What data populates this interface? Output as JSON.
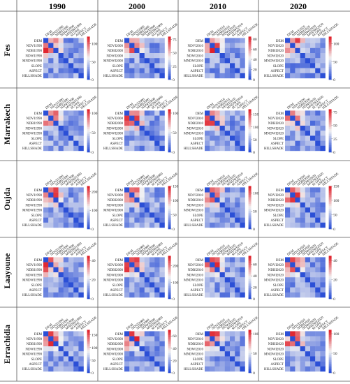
{
  "columns": [
    "1990",
    "2000",
    "2010",
    "2020"
  ],
  "rows": [
    "Fes",
    "Marrakech",
    "Oujda",
    "Laayoune",
    "Errachidia"
  ],
  "colors": {
    "low": "#2b4fd6",
    "mid": "#f2f2f2",
    "high": "#e0202a",
    "grid": "#555555"
  },
  "chart_data": {
    "type": "heatmap",
    "grid": {
      "rows": 5,
      "cols": 4
    },
    "panels": [
      {
        "row": "Fes",
        "col": "1990",
        "labels": [
          "DEM",
          "NDVI1990",
          "NDBI1990",
          "NDWI1990",
          "MNDWI1990",
          "SLOPE",
          "ASPECT",
          "HILLSHADE"
        ],
        "colorbar": {
          "min": 0,
          "max": 120,
          "ticks": [
            0,
            50,
            100
          ]
        }
      },
      {
        "row": "Fes",
        "col": "2000",
        "labels": [
          "DEM",
          "NDVI2000",
          "NDBI2000",
          "NDWI2000",
          "MNDWI2000",
          "SLOPE",
          "ASPECT",
          "HILLSHADE"
        ],
        "colorbar": {
          "min": 0,
          "max": 80,
          "ticks": [
            0,
            25,
            50,
            75
          ]
        }
      },
      {
        "row": "Fes",
        "col": "2010",
        "labels": [
          "DEM",
          "NDVI2010",
          "NDBI2010",
          "NDWI2010",
          "MNDWI2010",
          "SLOPE",
          "ASPECT",
          "HILLSHADE"
        ],
        "colorbar": {
          "min": 0,
          "max": 85,
          "ticks": [
            0,
            20,
            40,
            60,
            80
          ]
        }
      },
      {
        "row": "Fes",
        "col": "2020",
        "labels": [
          "DEM",
          "NDVI2020",
          "NDBI2020",
          "NDWI2020",
          "MNDWI2020",
          "SLOPE",
          "ASPECT",
          "HILLSHADE"
        ],
        "colorbar": {
          "min": 0,
          "max": 120,
          "ticks": [
            0,
            50,
            100
          ]
        }
      },
      {
        "row": "Marrakech",
        "col": "1990",
        "labels": [
          "DEM",
          "NDVI1990",
          "NDBI1990",
          "NDWI1990",
          "MNDWI1990",
          "SLOPE",
          "ASPECT",
          "HILLSHADE"
        ],
        "colorbar": {
          "min": 0,
          "max": 110,
          "ticks": [
            0,
            50,
            100
          ]
        }
      },
      {
        "row": "Marrakech",
        "col": "2000",
        "labels": [
          "DEM",
          "NDVI2000",
          "NDBI2000",
          "NDWI2000",
          "MNDWI2000",
          "SLOPE",
          "ASPECT",
          "HILLSHADE"
        ],
        "colorbar": {
          "min": 0,
          "max": 110,
          "ticks": [
            0,
            50,
            100
          ]
        }
      },
      {
        "row": "Marrakech",
        "col": "2010",
        "labels": [
          "DEM",
          "NDVI2010",
          "NDBI2010",
          "NDWI2010",
          "MNDWI2010",
          "SLOPE",
          "ASPECT",
          "HILLSHADE"
        ],
        "colorbar": {
          "min": 0,
          "max": 170,
          "ticks": [
            0,
            50,
            100,
            150
          ]
        }
      },
      {
        "row": "Marrakech",
        "col": "2020",
        "labels": [
          "DEM",
          "NDVI2020",
          "NDBI2020",
          "NDWI2020",
          "MNDWI2020",
          "SLOPE",
          "ASPECT",
          "HILLSHADE"
        ],
        "colorbar": {
          "min": 0,
          "max": 80,
          "ticks": [
            0,
            25,
            50,
            75
          ]
        }
      },
      {
        "row": "Oujda",
        "col": "1990",
        "labels": [
          "DEM",
          "NDVI1990",
          "NDBI1990",
          "NDWI1990",
          "MNDWI1990",
          "SLOPE",
          "ASPECT",
          "HILLSHADE"
        ],
        "colorbar": {
          "min": 0,
          "max": 230,
          "ticks": [
            0,
            100,
            200
          ]
        }
      },
      {
        "row": "Oujda",
        "col": "2000",
        "labels": [
          "DEM",
          "NDVI2000",
          "NDBI2000",
          "NDWI2000",
          "MNDWI2000",
          "SLOPE",
          "ASPECT",
          "HILLSHADE"
        ],
        "colorbar": {
          "min": 0,
          "max": 150,
          "ticks": [
            0,
            50,
            100,
            150
          ]
        }
      },
      {
        "row": "Oujda",
        "col": "2010",
        "labels": [
          "DEM",
          "NDVI2010",
          "NDBI2010",
          "NDWI2010",
          "MNDWI2010",
          "SLOPE",
          "ASPECT",
          "HILLSHADE"
        ],
        "colorbar": {
          "min": 0,
          "max": 120,
          "ticks": [
            0,
            50,
            100
          ]
        }
      },
      {
        "row": "Oujda",
        "col": "2020",
        "labels": [
          "DEM",
          "NDVI2020",
          "NDBI2020",
          "NDWI2020",
          "MNDWI2020",
          "SLOPE",
          "ASPECT",
          "HILLSHADE"
        ],
        "colorbar": {
          "min": 0,
          "max": 150,
          "ticks": [
            0,
            50,
            100,
            150
          ]
        }
      },
      {
        "row": "Laayoune",
        "col": "1990",
        "labels": [
          "DEM",
          "NDVI1990",
          "NDBI1990",
          "NDWI1990",
          "MNDWI1990",
          "SLOPE",
          "ASPECT",
          "HILLSHADE"
        ],
        "colorbar": {
          "min": 0,
          "max": 45,
          "ticks": [
            0,
            20,
            40
          ]
        }
      },
      {
        "row": "Laayoune",
        "col": "2000",
        "labels": [
          "DEM",
          "NDVI2000",
          "NDBI2000",
          "NDWI2000",
          "MNDWI2000",
          "SLOPE",
          "ASPECT",
          "HILLSHADE"
        ],
        "colorbar": {
          "min": 0,
          "max": 260,
          "ticks": [
            0,
            100,
            200
          ]
        }
      },
      {
        "row": "Laayoune",
        "col": "2010",
        "labels": [
          "DEM",
          "NDVI2010",
          "NDBI2010",
          "NDWI2010",
          "MNDWI2010",
          "SLOPE",
          "ASPECT",
          "HILLSHADE"
        ],
        "colorbar": {
          "min": 0,
          "max": 75,
          "ticks": [
            0,
            20,
            40,
            60
          ]
        }
      },
      {
        "row": "Laayoune",
        "col": "2020",
        "labels": [
          "DEM",
          "NDVI2020",
          "NDBI2020",
          "NDWI2020",
          "MNDWI2020",
          "SLOPE",
          "ASPECT",
          "HILLSHADE"
        ],
        "colorbar": {
          "min": 0,
          "max": 45,
          "ticks": [
            0,
            20,
            40
          ]
        }
      },
      {
        "row": "Errachidia",
        "col": "1990",
        "labels": [
          "DEM",
          "NDVI1990",
          "NDBI1990",
          "NDWI1990",
          "MNDWI1990",
          "SLOPE",
          "ASPECT",
          "HILLSHADE"
        ],
        "colorbar": {
          "min": 0,
          "max": 170,
          "ticks": [
            0,
            50,
            100,
            150
          ]
        }
      },
      {
        "row": "Errachidia",
        "col": "2000",
        "labels": [
          "DEM",
          "NDVI2000",
          "NDBI2000",
          "NDWI2000",
          "MNDWI2000",
          "SLOPE",
          "ASPECT",
          "HILLSHADE"
        ],
        "colorbar": {
          "min": 0,
          "max": 70,
          "ticks": [
            0,
            20,
            40,
            60
          ]
        }
      },
      {
        "row": "Errachidia",
        "col": "2010",
        "labels": [
          "DEM",
          "NDVI2010",
          "NDBI2010",
          "NDWI2010",
          "MNDWI2010",
          "SLOPE",
          "ASPECT",
          "HILLSHADE"
        ],
        "colorbar": {
          "min": 0,
          "max": 110,
          "ticks": [
            0,
            50,
            100
          ]
        }
      },
      {
        "row": "Errachidia",
        "col": "2020",
        "labels": [
          "DEM",
          "NDVI2020",
          "NDBI2020",
          "NDWI2020",
          "MNDWI2020",
          "SLOPE",
          "ASPECT",
          "HILLSHADE"
        ],
        "colorbar": {
          "min": 0,
          "max": 110,
          "ticks": [
            0,
            50,
            100
          ]
        }
      }
    ]
  }
}
